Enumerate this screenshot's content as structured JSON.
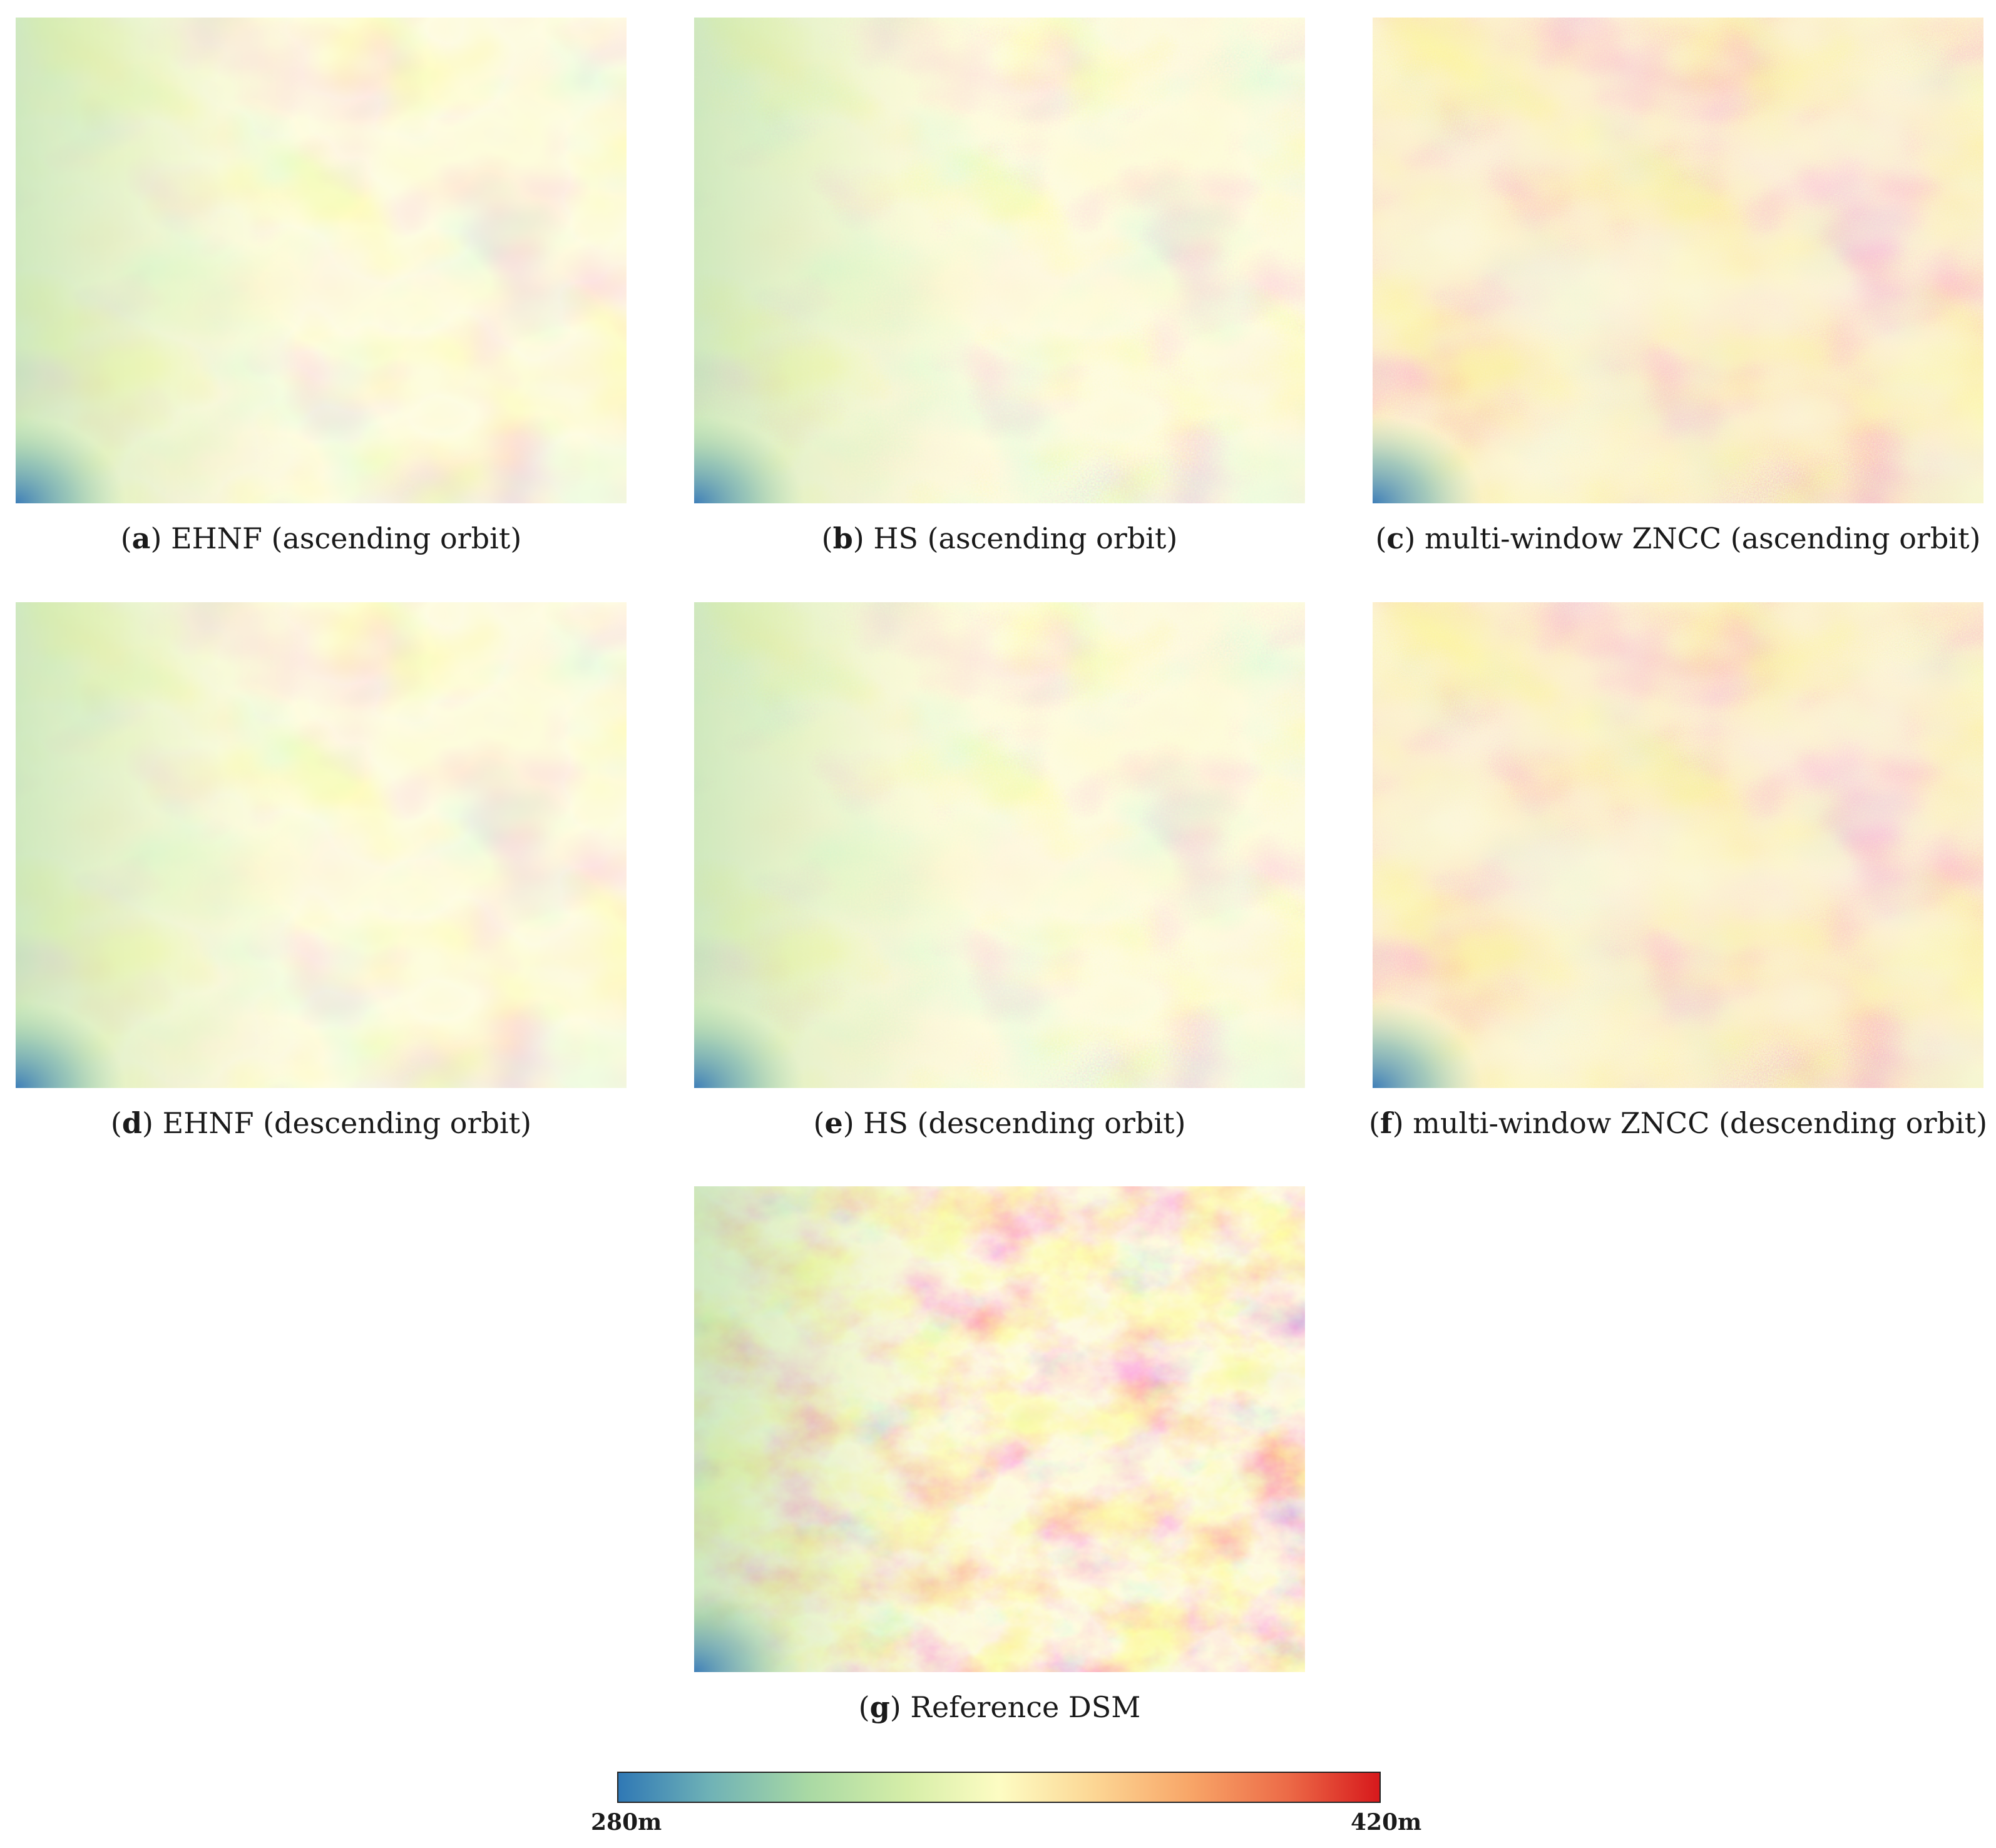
{
  "figure": {
    "panels": [
      {
        "id": "a",
        "label": "a",
        "caption": "EHNF (ascending orbit)"
      },
      {
        "id": "b",
        "label": "b",
        "caption": "HS (ascending orbit)"
      },
      {
        "id": "c",
        "label": "c",
        "caption": "multi-window ZNCC (ascending orbit)"
      },
      {
        "id": "d",
        "label": "d",
        "caption": "EHNF (descending orbit)"
      },
      {
        "id": "e",
        "label": "e",
        "caption": "HS (descending orbit)"
      },
      {
        "id": "f",
        "label": "f",
        "caption": "multi-window ZNCC (descending orbit)"
      },
      {
        "id": "g",
        "label": "g",
        "caption": "Reference DSM"
      }
    ],
    "colorbar": {
      "min_label": "280m",
      "max_label": "420m",
      "colors": [
        "#2f78b5",
        "#a9d9a4",
        "#fdfcc3",
        "#f8a668",
        "#d7191c"
      ]
    }
  }
}
